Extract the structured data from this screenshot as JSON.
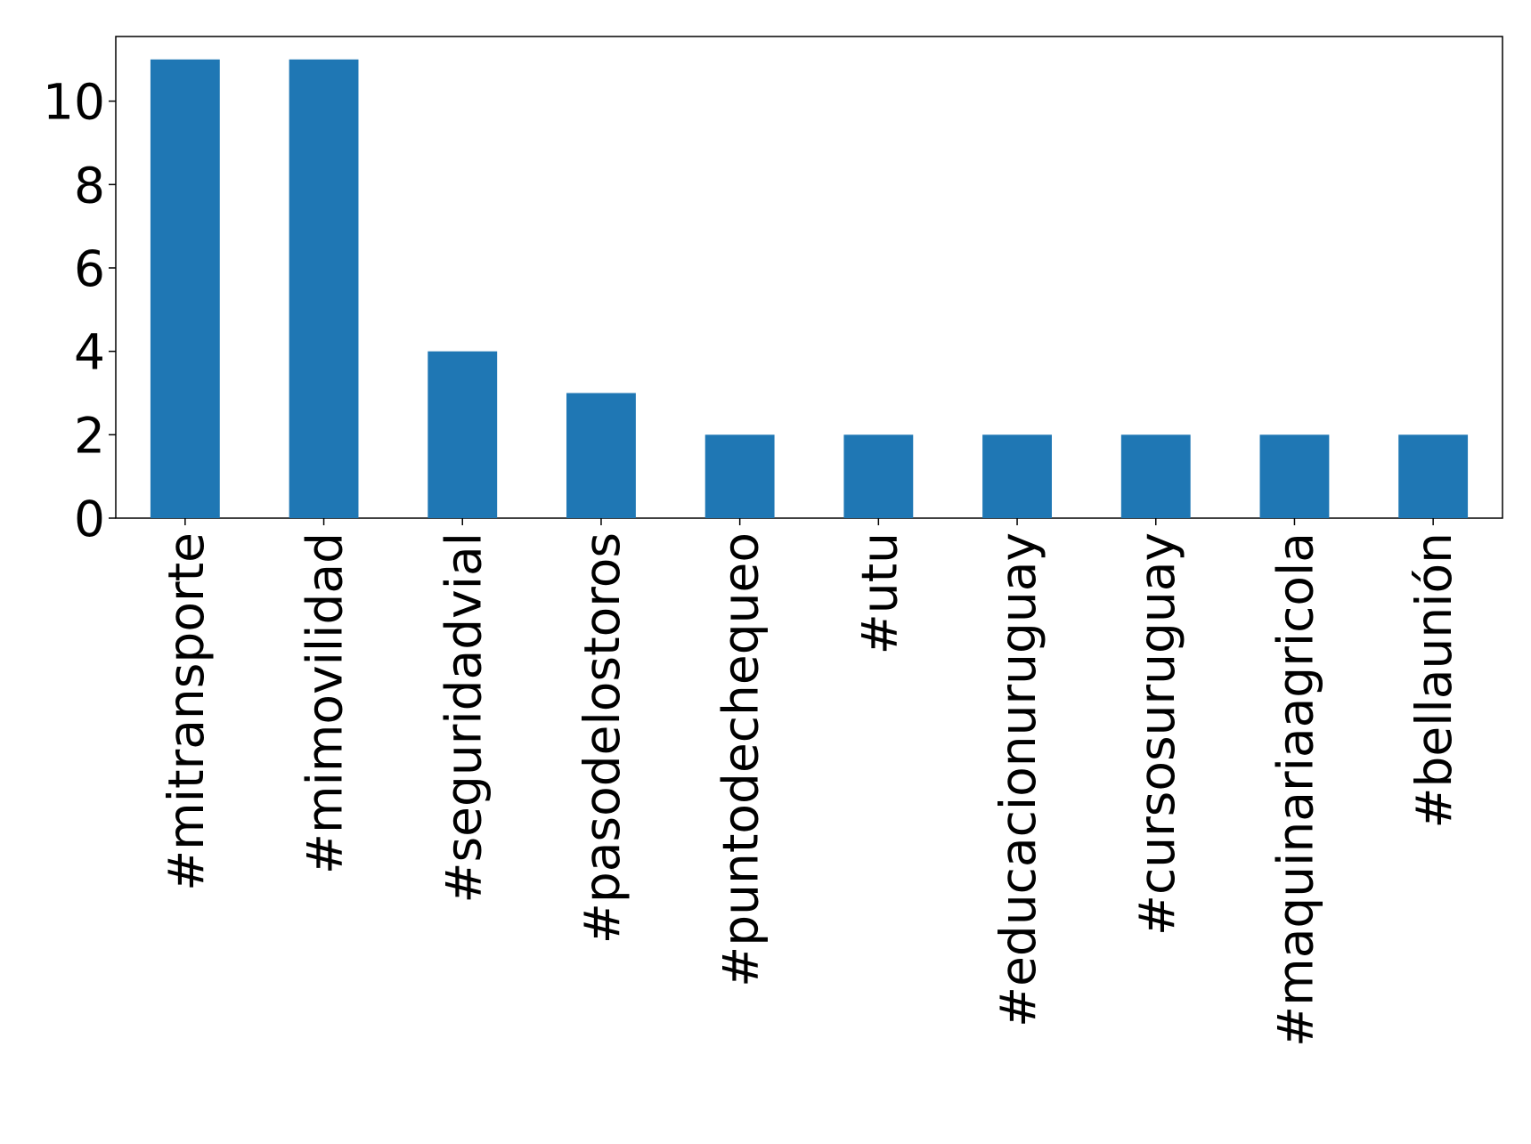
{
  "chart_data": {
    "type": "bar",
    "categories": [
      "#mitransporte",
      "#mimovilidad",
      "#seguridadvial",
      "#pasodelostoros",
      "#puntodechequeo",
      "#utu",
      "#educacionuruguay",
      "#cursosuruguay",
      "#maquinariaagricola",
      "#bellaunión"
    ],
    "values": [
      11,
      11,
      4,
      3,
      2,
      2,
      2,
      2,
      2,
      2
    ],
    "color": "#1f77b4",
    "ylim": [
      0,
      11.55
    ],
    "yticks": [
      0,
      2,
      4,
      6,
      8,
      10
    ],
    "grid": false
  }
}
